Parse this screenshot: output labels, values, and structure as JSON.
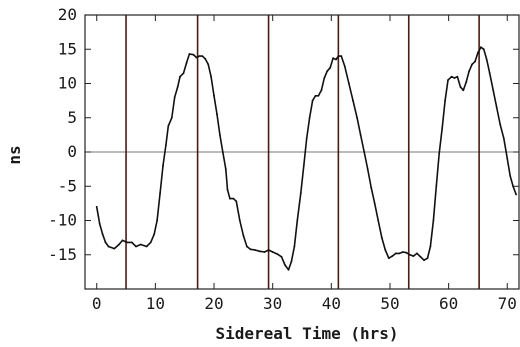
{
  "chart_data": {
    "type": "line",
    "title": "",
    "xlabel": "Sidereal Time (hrs)",
    "ylabel": "ns",
    "xlim": [
      -2,
      72
    ],
    "ylim": [
      -20,
      20
    ],
    "x_ticks": [
      0,
      10,
      20,
      30,
      40,
      50,
      60,
      70
    ],
    "y_ticks": [
      20,
      15,
      10,
      5,
      0,
      -5,
      -10,
      -15
    ],
    "y_minor_ticks": [
      -20
    ],
    "grid": false,
    "zero_line": 0,
    "vertical_markers": [
      5,
      17.2,
      29.3,
      41.2,
      53.2,
      65.2
    ],
    "series": [
      {
        "values": [
          [
            0,
            -8
          ],
          [
            0.5,
            -10.5
          ],
          [
            1,
            -12
          ],
          [
            1.5,
            -13.2
          ],
          [
            2,
            -13.8
          ],
          [
            3,
            -14.1
          ],
          [
            3.8,
            -13.5
          ],
          [
            4.4,
            -12.9
          ],
          [
            5.2,
            -13.2
          ],
          [
            6,
            -13.2
          ],
          [
            6.7,
            -13.8
          ],
          [
            7.5,
            -13.5
          ],
          [
            8.5,
            -13.8
          ],
          [
            9.2,
            -13.2
          ],
          [
            9.8,
            -12
          ],
          [
            10.3,
            -10
          ],
          [
            10.8,
            -6
          ],
          [
            11.3,
            -2
          ],
          [
            11.8,
            1
          ],
          [
            12.2,
            3.8
          ],
          [
            12.8,
            5
          ],
          [
            13.3,
            8
          ],
          [
            13.8,
            9.5
          ],
          [
            14.2,
            11
          ],
          [
            14.8,
            11.5
          ],
          [
            15.3,
            13
          ],
          [
            15.8,
            14.3
          ],
          [
            16.5,
            14.2
          ],
          [
            17,
            13.8
          ],
          [
            17.5,
            14
          ],
          [
            18,
            14
          ],
          [
            18.5,
            13.6
          ],
          [
            19,
            12.8
          ],
          [
            19.5,
            11
          ],
          [
            20,
            8.2
          ],
          [
            20.5,
            5.5
          ],
          [
            21,
            2.5
          ],
          [
            21.5,
            0
          ],
          [
            22,
            -2.5
          ],
          [
            22.3,
            -5.5
          ],
          [
            22.7,
            -6.8
          ],
          [
            23.3,
            -6.8
          ],
          [
            23.8,
            -7.2
          ],
          [
            24.4,
            -10
          ],
          [
            25,
            -12.2
          ],
          [
            25.6,
            -13.8
          ],
          [
            26.2,
            -14.2
          ],
          [
            27,
            -14.3
          ],
          [
            27.8,
            -14.5
          ],
          [
            28.6,
            -14.6
          ],
          [
            29.3,
            -14.3
          ],
          [
            30,
            -14.6
          ],
          [
            30.8,
            -14.9
          ],
          [
            31.5,
            -15.3
          ],
          [
            32.1,
            -16.5
          ],
          [
            32.7,
            -17.2
          ],
          [
            33.2,
            -16
          ],
          [
            33.7,
            -13.8
          ],
          [
            34.2,
            -10
          ],
          [
            34.8,
            -6
          ],
          [
            35.3,
            -2
          ],
          [
            35.8,
            2
          ],
          [
            36.3,
            5
          ],
          [
            36.8,
            7.5
          ],
          [
            37.3,
            8.2
          ],
          [
            37.8,
            8.2
          ],
          [
            38.3,
            9
          ],
          [
            38.8,
            10.8
          ],
          [
            39.3,
            11.8
          ],
          [
            39.8,
            12.3
          ],
          [
            40.3,
            13.7
          ],
          [
            40.8,
            13.5
          ],
          [
            41.2,
            14
          ],
          [
            41.7,
            14
          ],
          [
            42.3,
            12.5
          ],
          [
            43,
            10
          ],
          [
            43.7,
            7.5
          ],
          [
            44.4,
            5
          ],
          [
            45,
            2.5
          ],
          [
            45.6,
            0
          ],
          [
            46.2,
            -2.5
          ],
          [
            46.8,
            -5.2
          ],
          [
            47.4,
            -7.5
          ],
          [
            48,
            -10
          ],
          [
            48.6,
            -12.5
          ],
          [
            49.2,
            -14.3
          ],
          [
            49.8,
            -15.5
          ],
          [
            50.4,
            -15.2
          ],
          [
            51,
            -14.8
          ],
          [
            51.6,
            -14.8
          ],
          [
            52.2,
            -14.6
          ],
          [
            52.8,
            -14.7
          ],
          [
            53.4,
            -15
          ],
          [
            54,
            -15.2
          ],
          [
            54.6,
            -14.8
          ],
          [
            55.2,
            -15.3
          ],
          [
            55.8,
            -15.8
          ],
          [
            56.4,
            -15.5
          ],
          [
            56.9,
            -13.8
          ],
          [
            57.4,
            -10
          ],
          [
            57.9,
            -5
          ],
          [
            58.4,
            -0.2
          ],
          [
            58.9,
            3.5
          ],
          [
            59.4,
            7.5
          ],
          [
            59.9,
            10.5
          ],
          [
            60.5,
            11
          ],
          [
            61,
            10.8
          ],
          [
            61.5,
            11
          ],
          [
            62,
            9.5
          ],
          [
            62.5,
            9
          ],
          [
            63,
            10.2
          ],
          [
            63.5,
            11.8
          ],
          [
            64,
            12.8
          ],
          [
            64.5,
            13.2
          ],
          [
            65,
            14.5
          ],
          [
            65.5,
            15.3
          ],
          [
            66,
            15
          ],
          [
            66.5,
            13.5
          ],
          [
            67,
            11.5
          ],
          [
            67.6,
            9
          ],
          [
            68.2,
            6.5
          ],
          [
            68.8,
            4
          ],
          [
            69.4,
            2
          ],
          [
            70,
            -1
          ],
          [
            70.5,
            -3.5
          ],
          [
            71,
            -5
          ],
          [
            71.5,
            -6.2
          ]
        ]
      }
    ]
  }
}
